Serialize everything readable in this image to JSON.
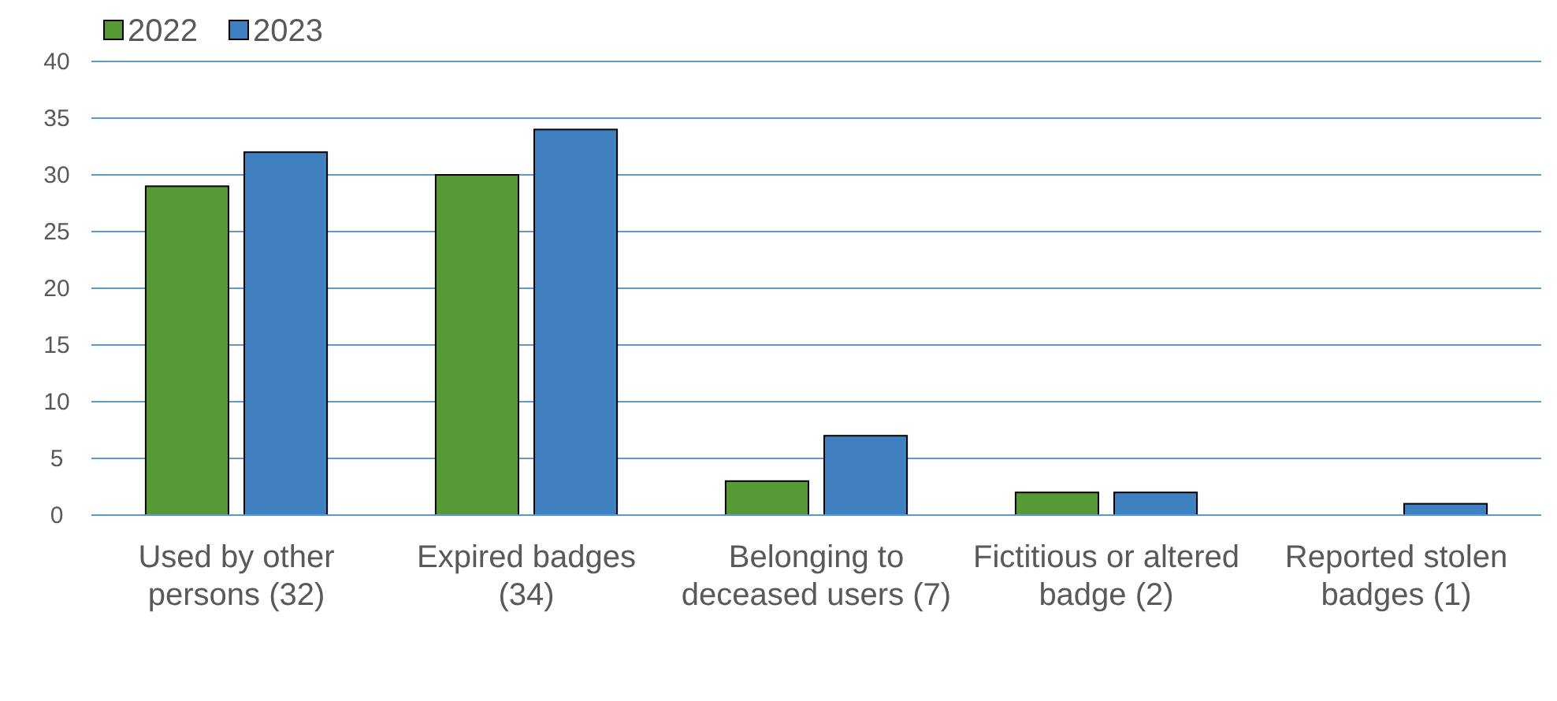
{
  "chart_data": {
    "type": "bar",
    "categories": [
      "Used by other persons (32)",
      "Expired badges (34)",
      "Belonging to deceased users (7)",
      "Fictitious or altered badge (2)",
      "Reported stolen badges (1)"
    ],
    "series": [
      {
        "name": "2022",
        "color": "#559a35",
        "values": [
          29,
          30,
          3,
          2,
          0
        ]
      },
      {
        "name": "2023",
        "color": "#3f80c0",
        "values": [
          32,
          34,
          7,
          2,
          1
        ]
      }
    ],
    "ylim": [
      0,
      40
    ],
    "yticks": [
      0,
      5,
      10,
      15,
      20,
      25,
      30,
      35,
      40
    ],
    "grid": "y",
    "legend": "top left"
  }
}
